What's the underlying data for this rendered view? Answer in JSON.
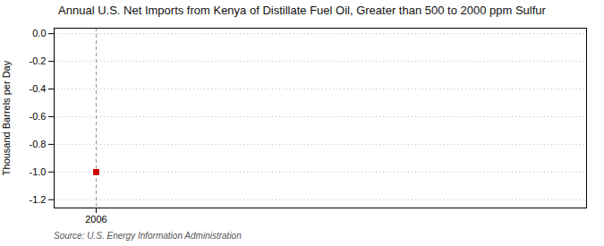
{
  "chart_data": {
    "type": "scatter",
    "title": "Annual U.S. Net Imports from Kenya of Distillate Fuel Oil, Greater than 500 to 2000 ppm Sulfur",
    "ylabel": "Thousand Barrels per Day",
    "source": "Source: U.S. Energy Information Administration",
    "x": [
      2006
    ],
    "values": [
      -1.0
    ],
    "color": "#cc0000",
    "marker": "square",
    "xlim": [
      2005.4,
      2013.0
    ],
    "xticks": [
      2006
    ],
    "ylim": [
      -1.26,
      0.04
    ],
    "yticks": [
      {
        "value": 0.0,
        "label": "0.0"
      },
      -0.2,
      -0.4,
      -0.6,
      -0.8,
      {
        "value": -1.0,
        "label": "-1.0"
      },
      -1.2
    ],
    "grid": "y",
    "vline": 2006
  }
}
